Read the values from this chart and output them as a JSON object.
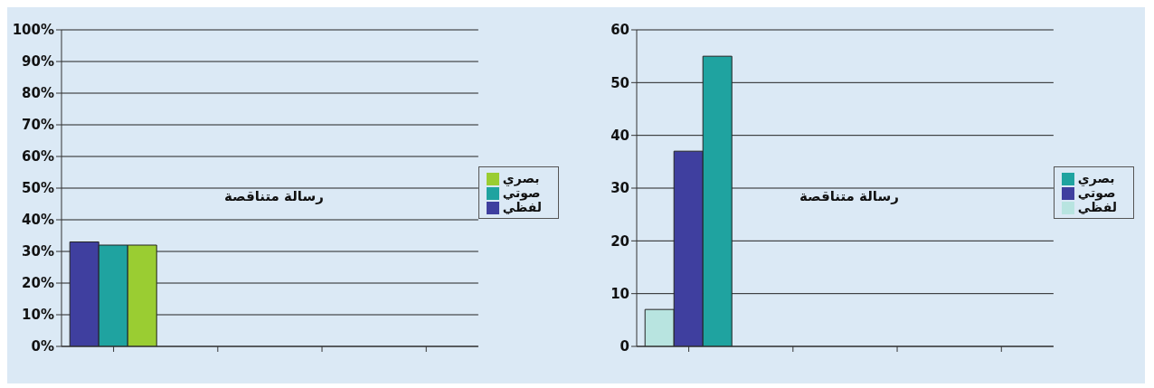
{
  "chart_data": [
    {
      "type": "bar",
      "categories": [
        null,
        null,
        null,
        null
      ],
      "series": [
        {
          "name": "لفظي",
          "color": "#3f3f9f",
          "values": [
            33,
            null,
            null,
            null
          ]
        },
        {
          "name": "صوتي",
          "color": "#1fa3a0",
          "values": [
            32,
            null,
            null,
            null
          ]
        },
        {
          "name": "بصري",
          "color": "#9acd32",
          "values": [
            32,
            null,
            null,
            null
          ]
        }
      ],
      "ylim": [
        0,
        100
      ],
      "yticks": [
        {
          "value": 0,
          "label": "0%"
        },
        {
          "value": 10,
          "label": "10%"
        },
        {
          "value": 20,
          "label": "20%"
        },
        {
          "value": 30,
          "label": "30%"
        },
        {
          "value": 40,
          "label": "40%"
        },
        {
          "value": 50,
          "label": "50%"
        },
        {
          "value": 60,
          "label": "60%"
        },
        {
          "value": 70,
          "label": "70%"
        },
        {
          "value": 80,
          "label": "80%"
        },
        {
          "value": 90,
          "label": "90%"
        },
        {
          "value": 100,
          "label": "100%"
        }
      ],
      "grid": "y",
      "legend": "right",
      "annotations": [
        "رسالة متناقصة"
      ]
    },
    {
      "type": "bar",
      "categories": [
        null,
        null,
        null,
        null
      ],
      "series": [
        {
          "name": "لفظي",
          "color": "#b8e4e0",
          "values": [
            7,
            null,
            null,
            null
          ]
        },
        {
          "name": "صوتي",
          "color": "#3f3f9f",
          "values": [
            37,
            null,
            null,
            null
          ]
        },
        {
          "name": "بصري",
          "color": "#1fa3a0",
          "values": [
            55,
            null,
            null,
            null
          ]
        }
      ],
      "ylim": [
        0,
        60
      ],
      "yticks": [
        0,
        10,
        20,
        30,
        40,
        50,
        60
      ],
      "grid": "y",
      "legend": "right",
      "annotations": [
        "رسالة متناقصة"
      ]
    }
  ]
}
